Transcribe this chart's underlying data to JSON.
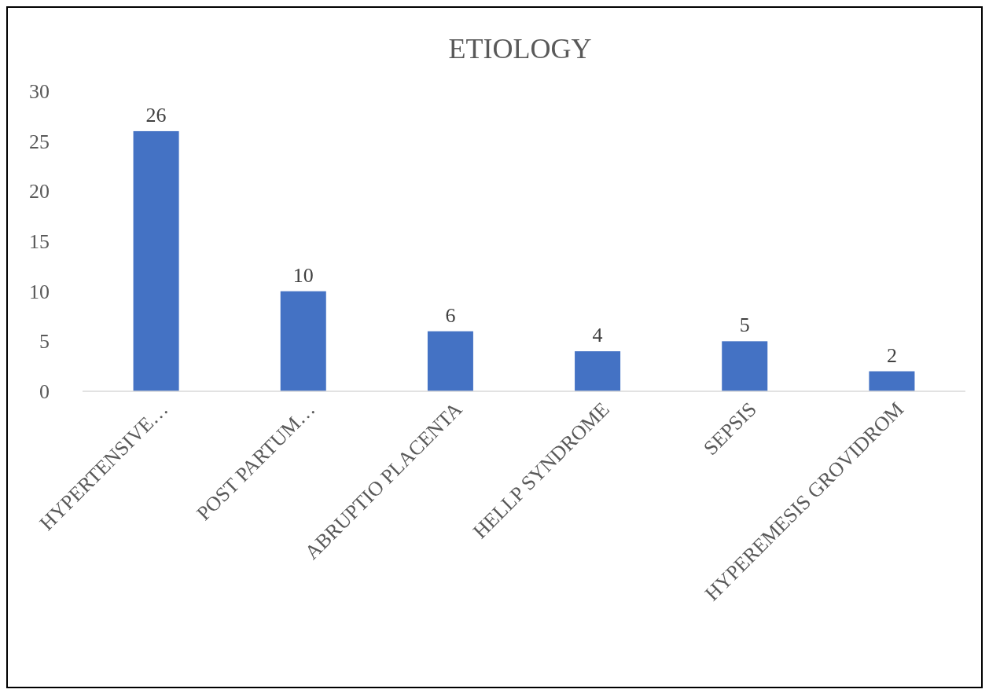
{
  "chart_data": {
    "type": "bar",
    "title": "ETIOLOGY",
    "categories": [
      "HYPERTENSIVE…",
      "POST PARTUM…",
      "ABRUPTIO PLACENTA",
      "HELLP SYNDROME",
      "SEPSIS",
      "HYPEREMESIS GROVIDROM"
    ],
    "values": [
      26,
      10,
      6,
      4,
      5,
      2
    ],
    "color": "#4472c4",
    "ylim": [
      0,
      30
    ],
    "yticks": [
      0,
      5,
      10,
      15,
      20,
      25,
      30
    ],
    "grid": false,
    "data_labels": true
  }
}
